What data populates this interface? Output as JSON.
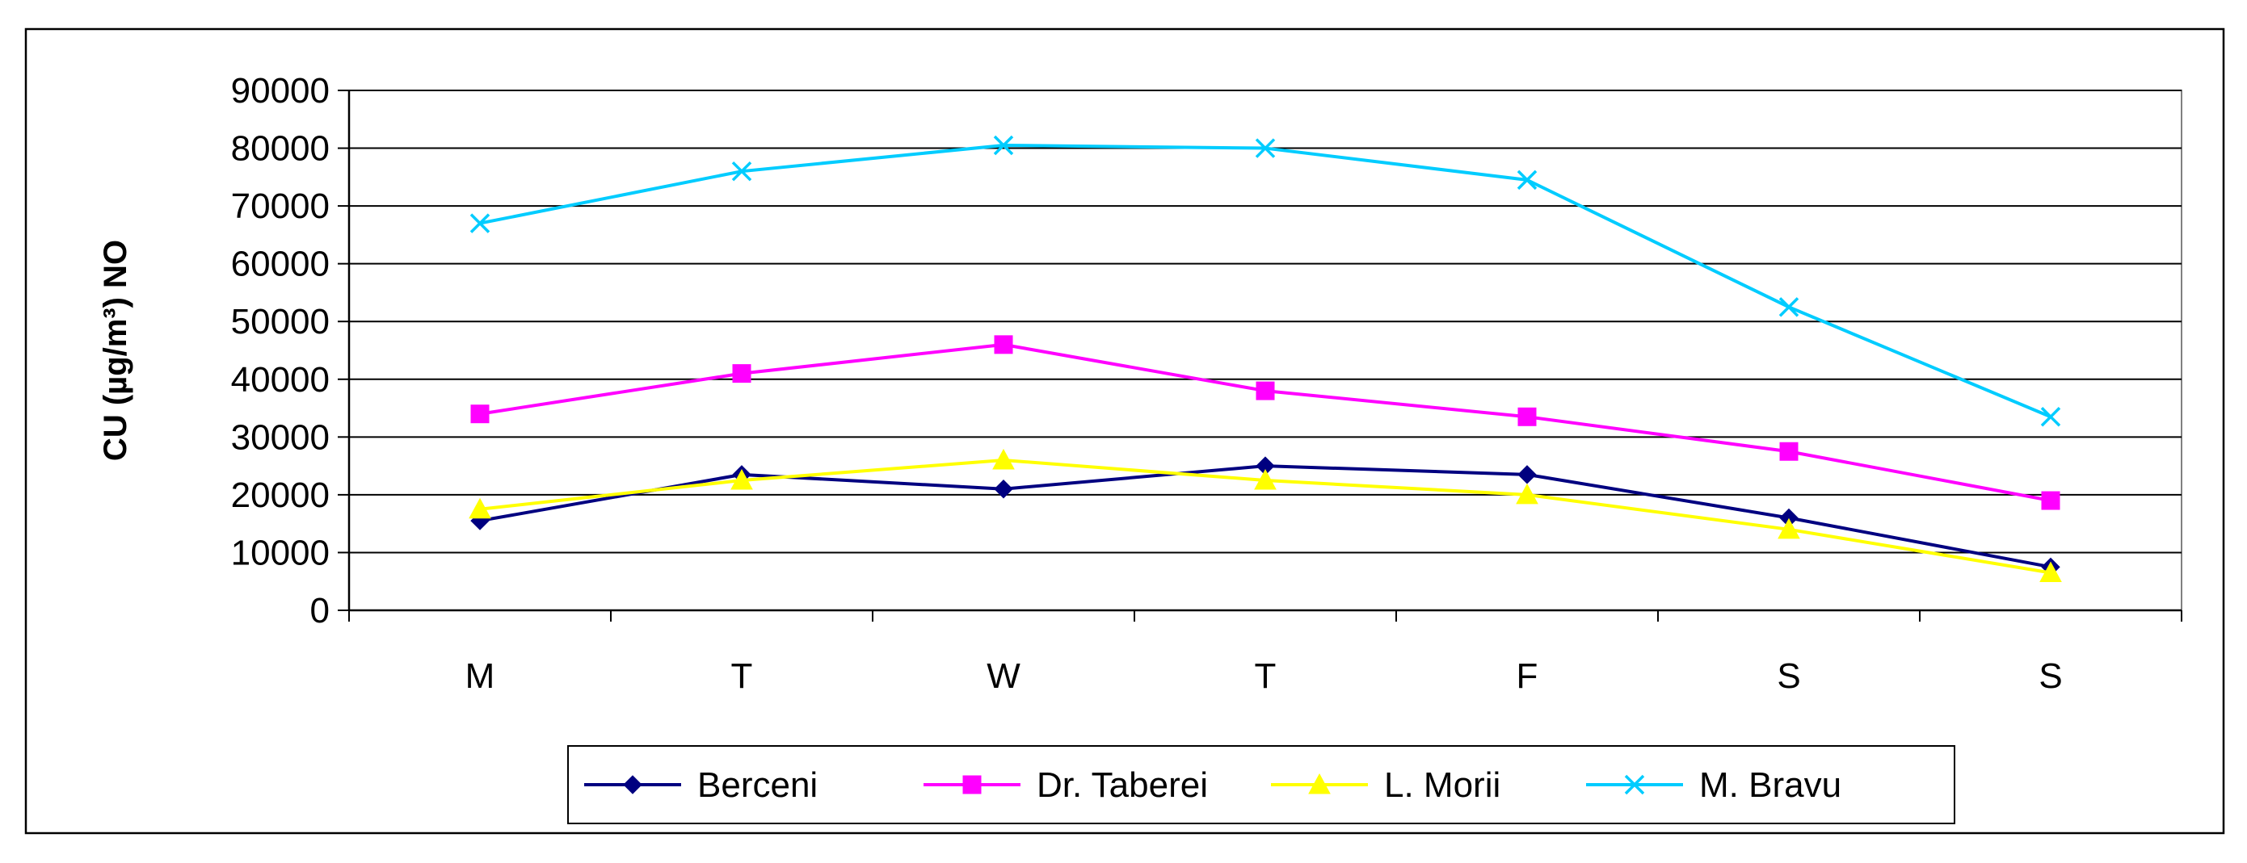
{
  "chart_data": {
    "type": "line",
    "title": "",
    "xlabel": "",
    "ylabel": "CU (µg/m³) NO",
    "categories": [
      "M",
      "T",
      "W",
      "T",
      "F",
      "S",
      "S"
    ],
    "ylim": [
      0,
      90000
    ],
    "yticks": [
      0,
      10000,
      20000,
      30000,
      40000,
      50000,
      60000,
      70000,
      80000,
      90000
    ],
    "grid": true,
    "legend_position": "bottom",
    "series": [
      {
        "name": "Berceni",
        "color": "#000080",
        "marker": "diamond",
        "values": [
          15500,
          23500,
          21000,
          25000,
          23500,
          16000,
          7500
        ]
      },
      {
        "name": "Dr. Taberei",
        "color": "#ff00ff",
        "marker": "square",
        "values": [
          34000,
          41000,
          46000,
          38000,
          33500,
          27500,
          19000
        ]
      },
      {
        "name": "L. Morii",
        "color": "#ffff00",
        "marker": "triangle",
        "values": [
          17500,
          22500,
          26000,
          22500,
          20000,
          14000,
          6500
        ]
      },
      {
        "name": "M. Bravu",
        "color": "#00ccff",
        "marker": "x",
        "values": [
          67000,
          76000,
          80500,
          80000,
          74500,
          52500,
          33500
        ]
      }
    ]
  }
}
